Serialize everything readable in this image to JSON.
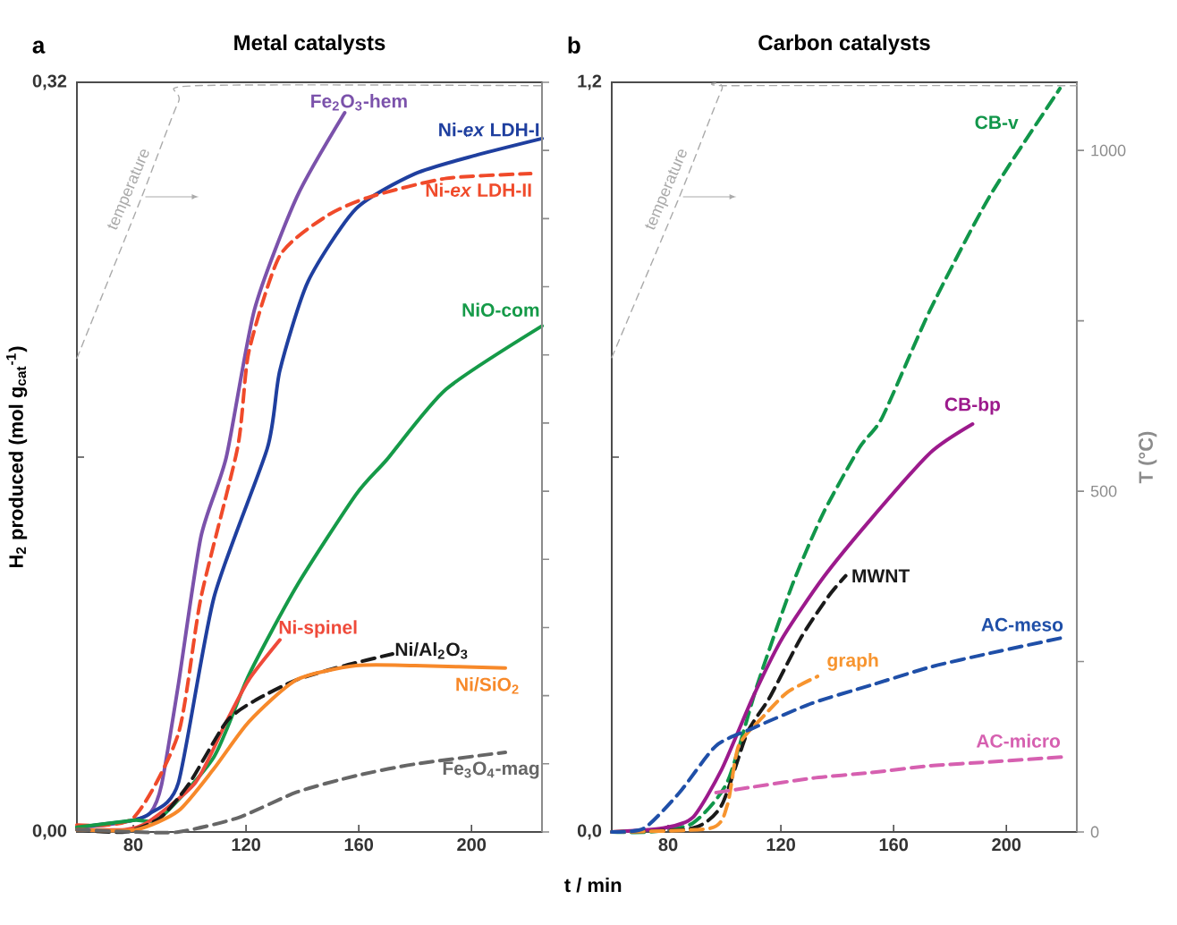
{
  "chart_data": [
    {
      "type": "line",
      "title": "Metal catalysts",
      "annotations": [
        "a"
      ],
      "xlabel": "t / min",
      "ylabel": "H$_{2}$ produced (mol g$_{cat}$$^{-1}$)",
      "xlim": [
        60,
        225
      ],
      "xticks": [
        80,
        120,
        160,
        200
      ],
      "ylim": [
        0,
        0.32
      ],
      "yticks": [
        {
          "value": 0,
          "label": "0,00"
        },
        {
          "value": 0.16,
          "label": null
        },
        {
          "value": 0.32,
          "label": "0,32"
        }
      ],
      "y2lim": [
        0,
        1100
      ],
      "tick_labels": "xy",
      "series": [
        {
          "name": "temperature",
          "axis": "y2",
          "color": "#aaaaaa",
          "line_style": "dashed",
          "x": [
            60,
            83,
            96,
            102,
            225
          ],
          "values": [
            695,
            932,
            1071,
            1095,
            1095
          ]
        },
        {
          "name": "Fe$_{2}$O$_{3}$-hem",
          "color": "#7b52ab",
          "line_style": "solid",
          "x": [
            60,
            70,
            80,
            86,
            90,
            96,
            104,
            113,
            123,
            138,
            155
          ],
          "values": [
            0.002,
            0.003,
            0.005,
            0.008,
            0.02,
            0.063,
            0.126,
            0.16,
            0.223,
            0.271,
            0.307
          ]
        },
        {
          "name": "Ni-*ex* LDH-I",
          "color": "#1f3f9f",
          "line_style": "solid",
          "x": [
            60,
            80,
            86,
            96,
            108.6,
            127.6,
            132,
            142,
            159,
            180,
            202,
            225
          ],
          "values": [
            0.002,
            0.005,
            0.008,
            0.021,
            0.1,
            0.164,
            0.197,
            0.235,
            0.266,
            0.281,
            0.289,
            0.296
          ]
        },
        {
          "name": "Ni-*ex* LDH-II",
          "color": "#f04a2a",
          "line_style": "dashed",
          "x": [
            60,
            80,
            96,
            104,
            117,
            121,
            132,
            148.7,
            163.7,
            191,
            221
          ],
          "values": [
            0.003,
            0.006,
            0.042,
            0.1,
            0.164,
            0.205,
            0.246,
            0.263,
            0.271,
            0.279,
            0.281
          ]
        },
        {
          "name": "NiO-com",
          "color": "#159a48",
          "line_style": "solid",
          "x": [
            60,
            80,
            89.5,
            108.6,
            121,
            138,
            159,
            170,
            191,
            225
          ],
          "values": [
            0.002,
            0.005,
            0.006,
            0.032,
            0.067,
            0.105,
            0.144,
            0.159,
            0.189,
            0.216
          ]
        },
        {
          "name": "Ni-spinel",
          "color": "#ef4a3a",
          "line_style": "solid",
          "x": [
            60,
            77,
            85,
            102,
            113,
            121,
            132
          ],
          "values": [
            0.001,
            0.001,
            0.004,
            0.021,
            0.047,
            0.065,
            0.082
          ]
        },
        {
          "name": "Ni/Al$_{2}$O$_{3}$",
          "color": "#1a1a1a",
          "line_style": "dashed",
          "x": [
            60,
            77,
            89.5,
            100,
            113,
            123,
            138,
            155,
            172
          ],
          "values": [
            0.001,
            0,
            0.006,
            0.021,
            0.047,
            0.056,
            0.065,
            0.071,
            0.076
          ]
        },
        {
          "name": "Ni/SiO$_{2}$",
          "color": "#f7892a",
          "line_style": "solid",
          "x": [
            60,
            81,
            96,
            108.6,
            121,
            138,
            159,
            180,
            212
          ],
          "values": [
            0.001,
            0.001,
            0.009,
            0.027,
            0.047,
            0.065,
            0.071,
            0.071,
            0.07
          ]
        },
        {
          "name": "Fe$_{3}$O$_{4}$-mag",
          "color": "#666666",
          "line_style": "dashed",
          "x": [
            60,
            80,
            96,
            117,
            138,
            159,
            180,
            212
          ],
          "values": [
            0.001,
            0,
            0,
            0.006,
            0.017,
            0.024,
            0.029,
            0.034
          ]
        }
      ]
    },
    {
      "type": "line",
      "title": "Carbon catalysts",
      "annotations": [
        "b"
      ],
      "y2label": "T (°C)",
      "xlim": [
        60,
        225
      ],
      "xticks": [
        80,
        120,
        160,
        200
      ],
      "ylim": [
        0,
        1.2
      ],
      "yticks": [
        {
          "value": 0,
          "label": "0,0"
        },
        {
          "value": 0.6,
          "label": null
        },
        {
          "value": 1.2,
          "label": "1,2"
        }
      ],
      "y2lim": [
        0,
        1100
      ],
      "y2ticks": [
        0,
        {
          "value": 250,
          "label": null
        },
        500,
        {
          "value": 750,
          "label": null
        },
        1000
      ],
      "series": [
        {
          "name": "temperature",
          "axis": "y2",
          "color": "#aaaaaa",
          "line_style": "dashed",
          "x": [
            60,
            84,
            99,
            102,
            225
          ],
          "values": [
            696,
            932,
            1089,
            1095,
            1095
          ]
        },
        {
          "name": "CB-v",
          "color": "#11964a",
          "line_style": "dashed",
          "x": [
            60,
            73,
            88.7,
            101,
            111.6,
            124,
            135,
            148,
            156,
            173,
            194,
            219
          ],
          "values": [
            0,
            0,
            0.014,
            0.08,
            0.235,
            0.395,
            0.51,
            0.616,
            0.664,
            0.836,
            1.017,
            1.19
          ]
        },
        {
          "name": "CB-bp",
          "color": "#9c1a8c",
          "line_style": "solid",
          "x": [
            60,
            78,
            88.7,
            99,
            110,
            120.5,
            135,
            152,
            173,
            188
          ],
          "values": [
            0,
            0.006,
            0.023,
            0.1,
            0.215,
            0.31,
            0.407,
            0.501,
            0.607,
            0.653
          ]
        },
        {
          "name": "MWNT",
          "color": "#1a1a1a",
          "line_style": "dashed",
          "x": [
            60,
            88.7,
            99,
            108,
            116,
            127,
            137,
            143
          ],
          "values": [
            0,
            0.006,
            0.043,
            0.158,
            0.215,
            0.31,
            0.378,
            0.41
          ]
        },
        {
          "name": "graph",
          "color": "#f7942e",
          "line_style": "dashed",
          "x": [
            60,
            95,
            101,
            105,
            114,
            122.4,
            133
          ],
          "values": [
            0,
            0.006,
            0.043,
            0.138,
            0.186,
            0.224,
            0.249
          ]
        },
        {
          "name": "AC-meso",
          "color": "#1f4fa8",
          "line_style": "dashed",
          "x": [
            60,
            71.5,
            84,
            97,
            110,
            131,
            152,
            173,
            194,
            221
          ],
          "values": [
            0,
            0.006,
            0.063,
            0.138,
            0.166,
            0.206,
            0.235,
            0.264,
            0.286,
            0.312
          ]
        },
        {
          "name": "AC-micro",
          "color": "#d660b0",
          "line_style": "dashed",
          "x": [
            97,
            110,
            131,
            152,
            173,
            194,
            220
          ],
          "values": [
            0.063,
            0.072,
            0.086,
            0.095,
            0.106,
            0.112,
            0.12
          ]
        }
      ]
    }
  ]
}
